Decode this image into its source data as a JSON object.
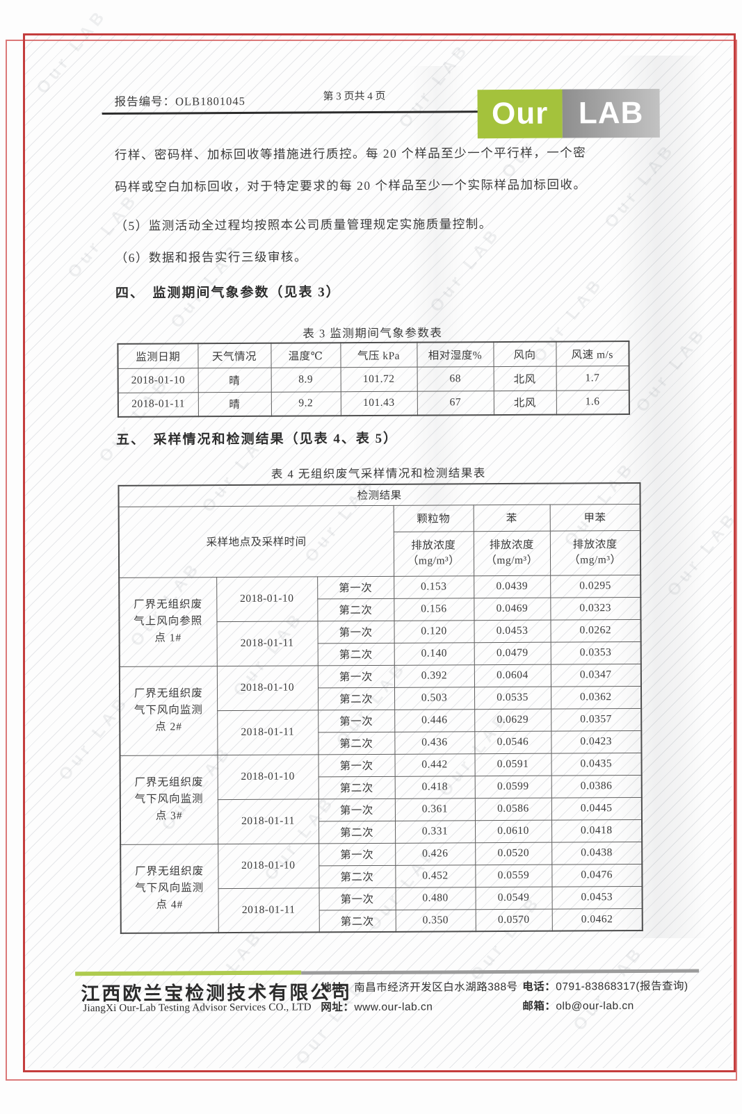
{
  "header": {
    "report_no": "报告编号：OLB1801045",
    "page_indicator": "第 3 页共 4 页"
  },
  "logo": {
    "our": "Our",
    "lab": "LAB"
  },
  "colors": {
    "accent_green": "#a4c23c",
    "logo_gray": "#9b9b9b",
    "border_red": "#c43d3d"
  },
  "paragraphs": [
    "行样、密码样、加标回收等措施进行质控。每 20 个样品至少一个平行样，一个密",
    "码样或空白加标回收，对于特定要求的每 20 个样品至少一个实际样品加标回收。",
    "（5）监测活动全过程均按照本公司质量管理规定实施质量控制。",
    "（6）数据和报告实行三级审核。"
  ],
  "section4": {
    "heading": "四、　监测期间气象参数（见表 3）",
    "table_caption": "表 3 监测期间气象参数表"
  },
  "table3": {
    "headers": [
      "监测日期",
      "天气情况",
      "温度℃",
      "气压 kPa",
      "相对湿度%",
      "风向",
      "风速 m/s"
    ],
    "rows": [
      [
        "2018-01-10",
        "晴",
        "8.9",
        "101.72",
        "68",
        "北风",
        "1.7"
      ],
      [
        "2018-01-11",
        "晴",
        "9.2",
        "101.43",
        "67",
        "北风",
        "1.6"
      ]
    ]
  },
  "section5": {
    "heading": "五、　采样情况和检测结果（见表 4、表 5）",
    "table_caption": "表 4 无组织废气采样情况和检测结果表"
  },
  "table4": {
    "top_header": "检测结果",
    "left_header": "采样地点及采样时间",
    "analytes": [
      "颗粒物",
      "苯",
      "甲苯"
    ],
    "sub_header": "排放浓度",
    "sub_header_unit": "（mg/m³）",
    "trial_labels": [
      "第一次",
      "第二次"
    ],
    "blocks": [
      {
        "location": "厂界无组织废\n气上风向参照\n点 1#",
        "dates": [
          {
            "date": "2018-01-10",
            "trials": [
              [
                "0.153",
                "0.0439",
                "0.0295"
              ],
              [
                "0.156",
                "0.0469",
                "0.0323"
              ]
            ]
          },
          {
            "date": "2018-01-11",
            "trials": [
              [
                "0.120",
                "0.0453",
                "0.0262"
              ],
              [
                "0.140",
                "0.0479",
                "0.0353"
              ]
            ]
          }
        ]
      },
      {
        "location": "厂界无组织废\n气下风向监测\n点 2#",
        "dates": [
          {
            "date": "2018-01-10",
            "trials": [
              [
                "0.392",
                "0.0604",
                "0.0347"
              ],
              [
                "0.503",
                "0.0535",
                "0.0362"
              ]
            ]
          },
          {
            "date": "2018-01-11",
            "trials": [
              [
                "0.446",
                "0.0629",
                "0.0357"
              ],
              [
                "0.436",
                "0.0546",
                "0.0423"
              ]
            ]
          }
        ]
      },
      {
        "location": "厂界无组织废\n气下风向监测\n点 3#",
        "dates": [
          {
            "date": "2018-01-10",
            "trials": [
              [
                "0.442",
                "0.0591",
                "0.0435"
              ],
              [
                "0.418",
                "0.0599",
                "0.0386"
              ]
            ]
          },
          {
            "date": "2018-01-11",
            "trials": [
              [
                "0.361",
                "0.0586",
                "0.0445"
              ],
              [
                "0.331",
                "0.0610",
                "0.0418"
              ]
            ]
          }
        ]
      },
      {
        "location": "厂界无组织废\n气下风向监测\n点 4#",
        "dates": [
          {
            "date": "2018-01-10",
            "trials": [
              [
                "0.426",
                "0.0520",
                "0.0438"
              ],
              [
                "0.452",
                "0.0559",
                "0.0476"
              ]
            ]
          },
          {
            "date": "2018-01-11",
            "trials": [
              [
                "0.480",
                "0.0549",
                "0.0453"
              ],
              [
                "0.350",
                "0.0570",
                "0.0462"
              ]
            ]
          }
        ]
      }
    ]
  },
  "footer": {
    "company_cn": "江西欧兰宝检测技术有限公司",
    "company_en": "JiangXi Our-Lab Testing Advisor Services CO., LTD",
    "address_label": "地址：",
    "address": "南昌市经济开发区白水湖路388号",
    "phone_label": "电话：",
    "phone": "0791-83868317(报告查询)",
    "website_label": "网址：",
    "website": "www.our-lab.cn",
    "email_label": "邮箱：",
    "email": "olb@our-lab.cn"
  },
  "watermark": {
    "text": "Our LAB"
  }
}
